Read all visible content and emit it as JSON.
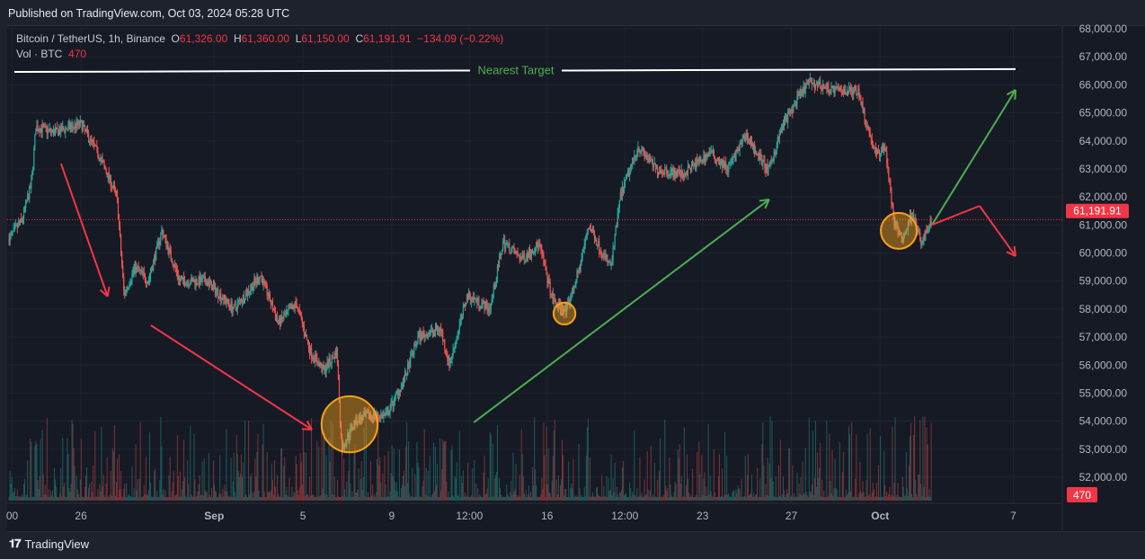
{
  "header": {
    "published": "Published on TradingView.com, Oct 03, 2024 05:28 UTC"
  },
  "legend": {
    "symbol": "Bitcoin / TetherUS, 1h, Binance",
    "o_label": "O",
    "o": "61,326.00",
    "h_label": "H",
    "h": "61,360.00",
    "l_label": "L",
    "l": "61,150.00",
    "c_label": "C",
    "c": "61,191.91",
    "change": "−134.09 (−0.22%)",
    "vol_label": "Vol · BTC",
    "vol": "470"
  },
  "footer": {
    "brand": "TradingView"
  },
  "colors": {
    "up": "#26a69a",
    "down": "#ef5350",
    "bg": "#161a25",
    "arrow_red": "#f23645",
    "arrow_green": "#4caf50",
    "circle": "#f7a21b"
  },
  "chart_data": {
    "type": "candlestick",
    "title": "Bitcoin / TetherUS, 1h, Binance",
    "x_unit": "day offset from Aug 0, 2024",
    "ylim": [
      51400,
      68300
    ],
    "xlim": [
      22.6,
      70.2
    ],
    "y_ticks": [
      "68,000.00",
      "67,000.00",
      "66,000.00",
      "65,000.00",
      "64,000.00",
      "63,000.00",
      "62,000.00",
      "61,000.00",
      "60,000.00",
      "59,000.00",
      "58,000.00",
      "57,000.00",
      "56,000.00",
      "55,000.00",
      "54,000.00",
      "53,000.00",
      "52,000.00"
    ],
    "y_tick_values": [
      68000,
      67000,
      66000,
      65000,
      64000,
      63000,
      62000,
      61000,
      60000,
      59000,
      58000,
      57000,
      56000,
      55000,
      54000,
      53000,
      52000
    ],
    "x_ticks": [
      {
        "label": "00",
        "x": 22.9
      },
      {
        "label": "26",
        "x": 26
      },
      {
        "label": "Sep",
        "x": 32
      },
      {
        "label": "5",
        "x": 36
      },
      {
        "label": "9",
        "x": 40
      },
      {
        "label": "12:00",
        "x": 43.5
      },
      {
        "label": "16",
        "x": 47
      },
      {
        "label": "12:00",
        "x": 50.5
      },
      {
        "label": "23",
        "x": 54
      },
      {
        "label": "27",
        "x": 58
      },
      {
        "label": "Oct",
        "x": 62
      },
      {
        "label": "7",
        "x": 68
      }
    ],
    "price_path": [
      [
        22.76,
        60500
      ],
      [
        23.36,
        61200
      ],
      [
        23.77,
        62500
      ],
      [
        23.97,
        64500
      ],
      [
        24.78,
        64300
      ],
      [
        26.0,
        64600
      ],
      [
        26.81,
        63500
      ],
      [
        27.62,
        62000
      ],
      [
        27.94,
        58500
      ],
      [
        28.43,
        59500
      ],
      [
        29.03,
        59000
      ],
      [
        29.64,
        60800
      ],
      [
        30.45,
        59000
      ],
      [
        31.66,
        59000
      ],
      [
        32.88,
        58000
      ],
      [
        34.09,
        59200
      ],
      [
        34.9,
        57500
      ],
      [
        35.71,
        58200
      ],
      [
        36.32,
        56500
      ],
      [
        36.93,
        55800
      ],
      [
        37.53,
        56500
      ],
      [
        37.74,
        53000
      ],
      [
        38.34,
        54000
      ],
      [
        38.95,
        54200
      ],
      [
        39.76,
        54200
      ],
      [
        40.57,
        55500
      ],
      [
        41.18,
        57000
      ],
      [
        42.19,
        57300
      ],
      [
        42.6,
        56000
      ],
      [
        43.4,
        58500
      ],
      [
        44.42,
        58000
      ],
      [
        45.02,
        60400
      ],
      [
        45.83,
        59800
      ],
      [
        46.64,
        60300
      ],
      [
        47.25,
        58300
      ],
      [
        47.86,
        57900
      ],
      [
        48.47,
        59500
      ],
      [
        48.87,
        61000
      ],
      [
        49.48,
        60000
      ],
      [
        49.88,
        59500
      ],
      [
        50.29,
        62000
      ],
      [
        51.1,
        63800
      ],
      [
        51.91,
        63000
      ],
      [
        53.12,
        62800
      ],
      [
        54.34,
        63600
      ],
      [
        55.15,
        63000
      ],
      [
        55.96,
        64200
      ],
      [
        56.97,
        62900
      ],
      [
        57.57,
        64500
      ],
      [
        58.38,
        65600
      ],
      [
        58.79,
        66100
      ],
      [
        60.0,
        65800
      ],
      [
        61.02,
        65800
      ],
      [
        61.42,
        64500
      ],
      [
        61.83,
        63500
      ],
      [
        62.23,
        63800
      ],
      [
        62.64,
        61000
      ],
      [
        63.04,
        60500
      ],
      [
        63.45,
        61500
      ],
      [
        63.85,
        60300
      ],
      [
        64.34,
        61192
      ]
    ],
    "last_price": "61,191.91",
    "last_price_value": 61191.91,
    "volume_last": "470",
    "annotations": {
      "target_label": "Nearest Target",
      "target_line": [
        [
          23.0,
          66460
        ],
        [
          68.1,
          66560
        ]
      ],
      "red_arrows": [
        [
          [
            25.1,
            63190
          ],
          [
            27.2,
            58450
          ]
        ],
        [
          [
            29.15,
            57420
          ],
          [
            36.4,
            53700
          ]
        ]
      ],
      "green_arrows": [
        [
          [
            43.7,
            53960
          ],
          [
            57.0,
            61910
          ]
        ],
        [
          [
            64.34,
            61010
          ],
          [
            68.1,
            65820
          ]
        ]
      ],
      "red_path": [
        [
          64.34,
          61010
        ],
        [
          66.48,
          61680
        ],
        [
          68.1,
          59890
        ]
      ],
      "circles": [
        {
          "x": 38.1,
          "y": 53890,
          "r_price": 1000
        },
        {
          "x": 47.78,
          "y": 57840,
          "r_price": 390
        },
        {
          "x": 62.84,
          "y": 60790,
          "r_price": 640
        }
      ]
    }
  }
}
